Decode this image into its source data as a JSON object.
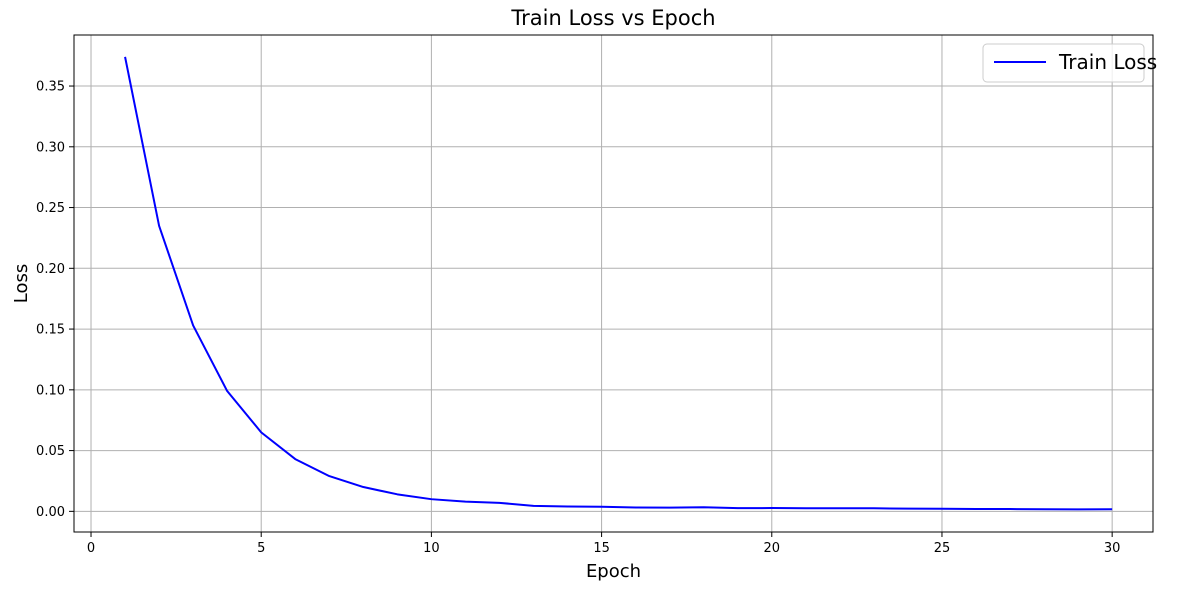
{
  "chart_data": {
    "type": "line",
    "title": "Train Loss vs Epoch",
    "xlabel": "Epoch",
    "ylabel": "Loss",
    "xlim": [
      -0.5,
      31.2
    ],
    "ylim": [
      -0.017,
      0.392
    ],
    "xticks": [
      0,
      5,
      10,
      15,
      20,
      25,
      30
    ],
    "xtick_labels": [
      "0",
      "5",
      "10",
      "15",
      "20",
      "25",
      "30"
    ],
    "yticks": [
      0.0,
      0.05,
      0.1,
      0.15,
      0.2,
      0.25,
      0.3,
      0.35
    ],
    "ytick_labels": [
      "0.00",
      "0.05",
      "0.10",
      "0.15",
      "0.20",
      "0.25",
      "0.30",
      "0.35"
    ],
    "grid": true,
    "legend_position": "top-right",
    "series": [
      {
        "name": "Train Loss",
        "color": "#0000ff",
        "x": [
          1,
          2,
          3,
          4,
          5,
          6,
          7,
          8,
          9,
          10,
          11,
          12,
          13,
          14,
          15,
          16,
          17,
          18,
          19,
          20,
          21,
          22,
          23,
          24,
          25,
          26,
          27,
          28,
          29,
          30
        ],
        "y": [
          0.374,
          0.235,
          0.153,
          0.099,
          0.065,
          0.043,
          0.029,
          0.02,
          0.014,
          0.01,
          0.008,
          0.007,
          0.0045,
          0.004,
          0.0038,
          0.0032,
          0.0031,
          0.0034,
          0.0026,
          0.0027,
          0.0025,
          0.0025,
          0.0025,
          0.0022,
          0.0021,
          0.0019,
          0.0019,
          0.0017,
          0.0016,
          0.0017
        ]
      }
    ]
  }
}
